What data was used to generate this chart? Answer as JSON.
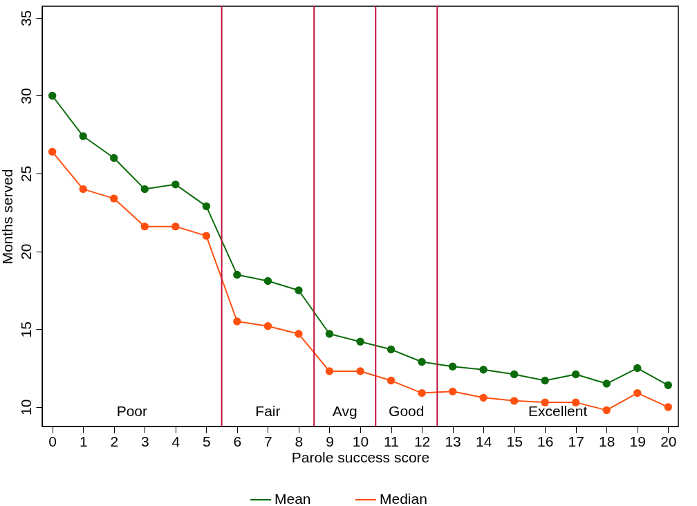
{
  "chart_data": {
    "type": "line",
    "xlabel": "Parole success score",
    "ylabel": "Months served",
    "x": [
      0,
      1,
      2,
      3,
      4,
      5,
      6,
      7,
      8,
      9,
      10,
      11,
      12,
      13,
      14,
      15,
      16,
      17,
      18,
      19,
      20
    ],
    "series": [
      {
        "name": "Mean",
        "color": "#0b6b0b",
        "values": [
          30.0,
          27.4,
          26.0,
          24.0,
          24.3,
          22.9,
          18.5,
          18.1,
          17.5,
          14.7,
          14.2,
          13.7,
          12.9,
          12.6,
          12.4,
          12.1,
          11.7,
          12.1,
          11.5,
          12.5,
          11.4
        ]
      },
      {
        "name": "Median",
        "color": "#ff5010",
        "values": [
          26.4,
          24.0,
          23.4,
          21.6,
          21.6,
          21.0,
          15.5,
          15.2,
          14.7,
          12.3,
          12.3,
          11.7,
          10.9,
          11.0,
          10.6,
          10.4,
          10.3,
          10.3,
          9.8,
          10.9,
          10.0
        ]
      }
    ],
    "xlim": [
      -0.33,
      20.33
    ],
    "xticks": [
      0,
      1,
      2,
      3,
      4,
      5,
      6,
      7,
      8,
      9,
      10,
      11,
      12,
      13,
      14,
      15,
      16,
      17,
      18,
      19,
      20
    ],
    "ylim": [
      8.75,
      35.75
    ],
    "yticks": [
      10,
      15,
      20,
      25,
      30,
      35
    ],
    "ref_lines": [
      {
        "axis": "x",
        "value": 5.5,
        "color": "#c0103c"
      },
      {
        "axis": "x",
        "value": 8.5,
        "color": "#c0103c"
      },
      {
        "axis": "x",
        "value": 10.5,
        "color": "#c0103c"
      },
      {
        "axis": "x",
        "value": 12.5,
        "color": "#c0103c"
      }
    ],
    "annotations": [
      "Poor",
      "Fair",
      "Avg",
      "Good",
      "Excellent"
    ],
    "grid": false,
    "legend": "bottom",
    "marker": "circle",
    "line_style": "solid"
  }
}
